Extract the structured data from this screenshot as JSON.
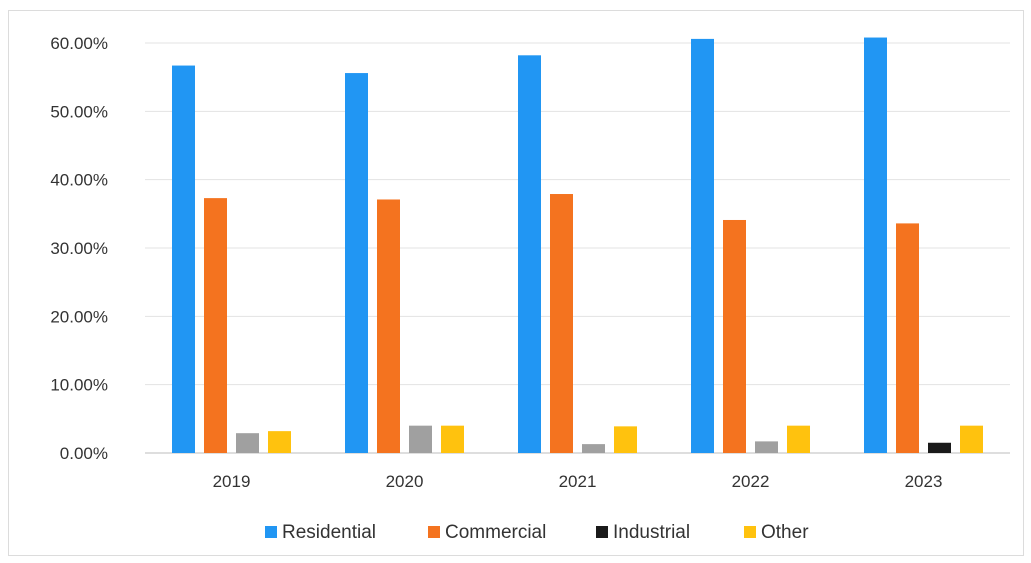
{
  "chart_data": {
    "type": "bar",
    "categories": [
      "2019",
      "2020",
      "2021",
      "2022",
      "2023"
    ],
    "series": [
      {
        "name": "Residential",
        "color": "#2196F3",
        "values": [
          56.7,
          55.6,
          58.2,
          60.6,
          60.8
        ]
      },
      {
        "name": "Commercial",
        "color": "#F4731F",
        "values": [
          37.3,
          37.1,
          37.9,
          34.1,
          33.6
        ]
      },
      {
        "name": "Industrial",
        "color": "#A0A0A0",
        "values": [
          2.9,
          4.0,
          1.3,
          1.7,
          1.5
        ]
      },
      {
        "name": "Other",
        "color": "#FFC20E",
        "values": [
          3.2,
          4.0,
          3.9,
          4.0,
          4.0
        ]
      }
    ],
    "industrial_2023_color": "#1a1a1a",
    "industrial_legend_swatch_color": "#1a1a1a",
    "y_ticks": [
      "0.00%",
      "10.00%",
      "20.00%",
      "30.00%",
      "40.00%",
      "50.00%",
      "60.00%"
    ],
    "ylim": [
      0,
      60
    ],
    "title": "",
    "xlabel": "",
    "ylabel": "",
    "grid": true,
    "legend_position": "bottom"
  }
}
